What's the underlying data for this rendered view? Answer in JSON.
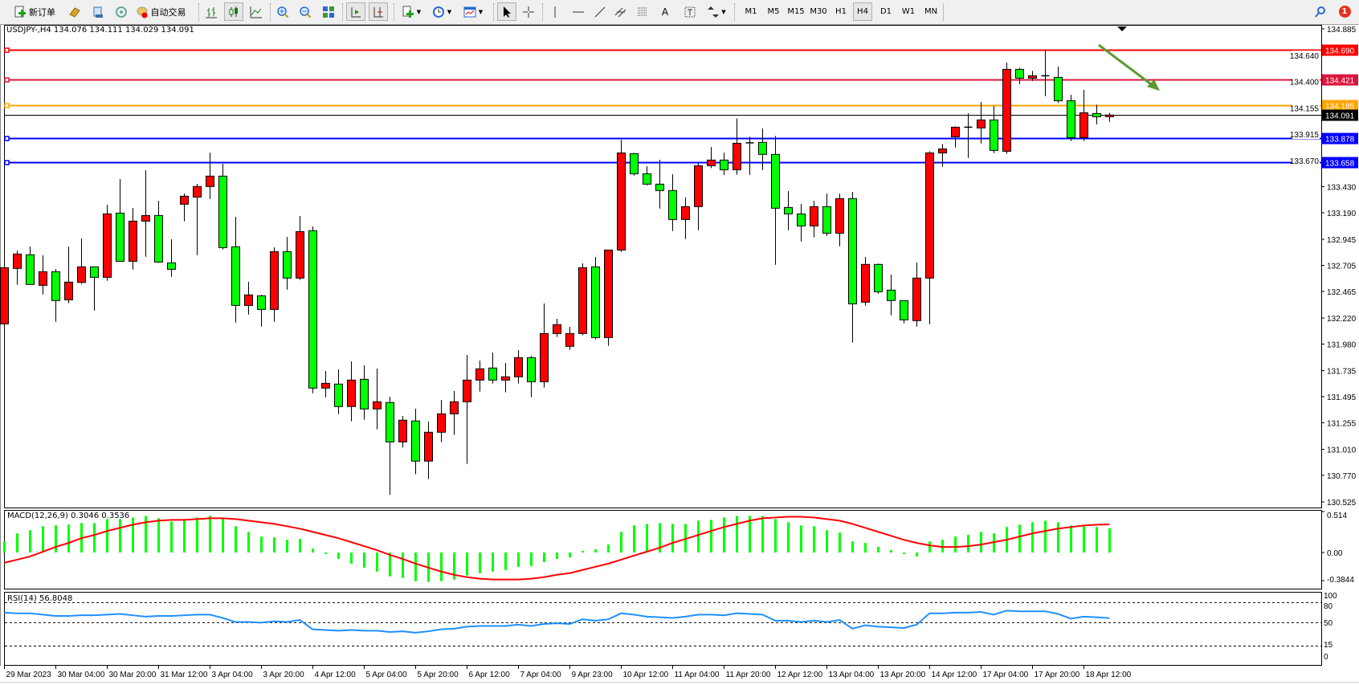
{
  "toolbar": {
    "new_order_label": "新订单",
    "auto_trade_label": "自动交易",
    "timeframes": [
      "M1",
      "M5",
      "M15",
      "M30",
      "H1",
      "H4",
      "D1",
      "W1",
      "MN"
    ],
    "active_timeframe": "H4",
    "notification_count": "1"
  },
  "chart": {
    "title": "USDJPY-,H4  134.076 134.111 134.029 134.091",
    "bull_color": "#ff0000",
    "bear_color": "#00ff00",
    "ohlc": [
      [
        132.166,
        132.701,
        132.141,
        132.684
      ],
      [
        132.677,
        132.842,
        132.526,
        132.81
      ],
      [
        132.803,
        132.879,
        132.529,
        132.529
      ],
      [
        132.521,
        132.798,
        132.437,
        132.647
      ],
      [
        132.647,
        132.672,
        132.186,
        132.381
      ],
      [
        132.388,
        132.879,
        132.356,
        132.551
      ],
      [
        132.548,
        132.953,
        132.534,
        132.692
      ],
      [
        132.692,
        132.692,
        132.289,
        132.595
      ],
      [
        132.595,
        133.264,
        132.563,
        133.18
      ],
      [
        133.187,
        133.501,
        132.743,
        132.743
      ],
      [
        132.743,
        133.234,
        132.667,
        133.113
      ],
      [
        133.113,
        133.582,
        132.785,
        133.165
      ],
      [
        133.165,
        133.301,
        132.729,
        132.736
      ],
      [
        132.729,
        132.946,
        132.6,
        132.669
      ],
      [
        133.269,
        133.368,
        133.111,
        133.343
      ],
      [
        133.335,
        133.456,
        132.8,
        133.432
      ],
      [
        133.432,
        133.745,
        133.318,
        133.528
      ],
      [
        133.528,
        133.641,
        132.852,
        132.869
      ],
      [
        132.877,
        133.153,
        132.178,
        132.336
      ],
      [
        132.336,
        132.553,
        132.252,
        132.433
      ],
      [
        132.425,
        132.435,
        132.141,
        132.299
      ],
      [
        132.299,
        132.872,
        132.186,
        132.832
      ],
      [
        132.832,
        132.968,
        132.482,
        132.588
      ],
      [
        132.588,
        133.16,
        132.571,
        133.017
      ],
      [
        133.025,
        133.064,
        131.527,
        131.574
      ],
      [
        131.574,
        131.732,
        131.49,
        131.618
      ],
      [
        131.611,
        131.747,
        131.335,
        131.404
      ],
      [
        131.404,
        131.821,
        131.268,
        131.648
      ],
      [
        131.655,
        131.784,
        131.283,
        131.382
      ],
      [
        131.382,
        131.754,
        131.194,
        131.448
      ],
      [
        131.441,
        131.495,
        130.59,
        131.078
      ],
      [
        131.078,
        131.317,
        131.026,
        131.278
      ],
      [
        131.271,
        131.384,
        130.78,
        130.901
      ],
      [
        130.901,
        131.266,
        130.735,
        131.167
      ],
      [
        131.167,
        131.465,
        131.076,
        131.337
      ],
      [
        131.337,
        131.547,
        131.142,
        131.448
      ],
      [
        131.448,
        131.88,
        130.876,
        131.648
      ],
      [
        131.648,
        131.828,
        131.542,
        131.752
      ],
      [
        131.759,
        131.902,
        131.616,
        131.648
      ],
      [
        131.648,
        131.806,
        131.535,
        131.678
      ],
      [
        131.678,
        131.924,
        131.616,
        131.855
      ],
      [
        131.855,
        131.87,
        131.49,
        131.633
      ],
      [
        131.633,
        132.354,
        131.579,
        132.077
      ],
      [
        132.077,
        132.213,
        132.045,
        132.159
      ],
      [
        131.959,
        132.139,
        131.927,
        132.077
      ],
      [
        132.077,
        132.724,
        132.062,
        132.684
      ],
      [
        132.692,
        132.783,
        132.023,
        132.04
      ],
      [
        132.04,
        132.847,
        131.964,
        132.847
      ],
      [
        132.847,
        133.863,
        132.83,
        133.742
      ],
      [
        133.735,
        133.742,
        133.533,
        133.55
      ],
      [
        133.55,
        133.619,
        133.444,
        133.454
      ],
      [
        133.454,
        133.678,
        133.229,
        133.395
      ],
      [
        133.395,
        133.545,
        133.022,
        133.128
      ],
      [
        133.128,
        133.331,
        132.948,
        133.247
      ],
      [
        133.247,
        133.646,
        133.03,
        133.624
      ],
      [
        133.624,
        133.797,
        133.602,
        133.676
      ],
      [
        133.676,
        133.745,
        133.54,
        133.587
      ],
      [
        133.587,
        134.06,
        133.54,
        133.831
      ],
      [
        133.831,
        133.891,
        133.54,
        133.835
      ],
      [
        133.839,
        133.967,
        133.584,
        133.728
      ],
      [
        133.728,
        133.898,
        132.711,
        133.232
      ],
      [
        133.239,
        133.39,
        133.029,
        133.18
      ],
      [
        133.18,
        133.271,
        132.926,
        133.069
      ],
      [
        133.069,
        133.301,
        132.963,
        133.247
      ],
      [
        133.247,
        133.367,
        132.978,
        133.002
      ],
      [
        133.002,
        133.367,
        132.881,
        133.321
      ],
      [
        133.321,
        133.382,
        131.993,
        132.351
      ],
      [
        132.366,
        132.783,
        132.334,
        132.714
      ],
      [
        132.714,
        132.722,
        132.445,
        132.462
      ],
      [
        132.477,
        132.62,
        132.245,
        132.381
      ],
      [
        132.381,
        132.381,
        132.171,
        132.203
      ],
      [
        132.196,
        132.731,
        132.141,
        132.588
      ],
      [
        132.588,
        133.757,
        132.163,
        133.742
      ],
      [
        133.742,
        133.824,
        133.614,
        133.779
      ],
      [
        133.89,
        133.987,
        133.792,
        133.979
      ],
      [
        133.979,
        134.107,
        133.696,
        133.977
      ],
      [
        133.972,
        134.211,
        133.829,
        134.046
      ],
      [
        134.046,
        134.174,
        133.74,
        133.765
      ],
      [
        133.757,
        134.574,
        133.733,
        134.512
      ],
      [
        134.512,
        134.527,
        134.376,
        134.431
      ],
      [
        134.431,
        134.497,
        134.406,
        134.453
      ],
      [
        134.453,
        134.692,
        134.265,
        134.443
      ],
      [
        134.438,
        134.537,
        134.201,
        134.223
      ],
      [
        134.223,
        134.278,
        133.851,
        133.883
      ],
      [
        133.883,
        134.322,
        133.851,
        134.112
      ],
      [
        134.105,
        134.186,
        134.006,
        134.075
      ],
      [
        134.076,
        134.111,
        134.029,
        134.091
      ]
    ],
    "hlines": [
      {
        "price": 134.69,
        "label": "134.690",
        "color": "#ff0000"
      },
      {
        "price": 134.421,
        "label": "134.421",
        "color": "#dc143c"
      },
      {
        "price": 134.185,
        "label": "134.185",
        "color": "#ffa500"
      },
      {
        "price": 133.878,
        "label": "133.878",
        "color": "#0000ff"
      },
      {
        "price": 133.658,
        "label": "133.658",
        "color": "#0000ff"
      }
    ],
    "bid": {
      "price": 134.091,
      "label": "134.091",
      "color": "#000000"
    },
    "price_range": [
      130.525,
      134.885
    ],
    "price_ticks": [
      "134.885",
      "134.640",
      "134.400",
      "134.155",
      "133.915",
      "133.670",
      "133.430",
      "133.190",
      "132.945",
      "132.705",
      "132.465",
      "132.220",
      "131.980",
      "131.735",
      "131.495",
      "131.255",
      "131.010",
      "130.770",
      "130.525"
    ],
    "time_labels": [
      "29 Mar 2023",
      "30 Mar 04:00",
      "30 Mar 20:00",
      "31 Mar 12:00",
      "3 Apr 04:00",
      "3 Apr 20:00",
      "4 Apr 12:00",
      "5 Apr 04:00",
      "5 Apr 20:00",
      "6 Apr 12:00",
      "7 Apr 04:00",
      "9 Apr 23:00",
      "10 Apr 12:00",
      "11 Apr 04:00",
      "11 Apr 20:00",
      "12 Apr 12:00",
      "13 Apr 04:00",
      "13 Apr 20:00",
      "14 Apr 12:00",
      "17 Apr 04:00",
      "17 Apr 20:00",
      "18 Apr 12:00"
    ],
    "arrow_color": "#5a9a32"
  },
  "macd": {
    "label": "MACD(12,26,9) 0.3046 0.3536",
    "ticks": [
      "0.514",
      "0.00",
      "-0.3844"
    ],
    "hist_color": "#00ff00",
    "signal_color": "#ff0000",
    "histogram": [
      0.14,
      0.24,
      0.28,
      0.33,
      0.34,
      0.35,
      0.37,
      0.37,
      0.42,
      0.42,
      0.44,
      0.46,
      0.43,
      0.39,
      0.41,
      0.44,
      0.46,
      0.43,
      0.33,
      0.26,
      0.2,
      0.19,
      0.16,
      0.17,
      0.05,
      -0.02,
      -0.08,
      -0.14,
      -0.19,
      -0.24,
      -0.3,
      -0.32,
      -0.36,
      -0.37,
      -0.36,
      -0.34,
      -0.29,
      -0.26,
      -0.24,
      -0.22,
      -0.18,
      -0.17,
      -0.12,
      -0.08,
      -0.06,
      0.02,
      0.04,
      0.1,
      0.26,
      0.34,
      0.36,
      0.37,
      0.36,
      0.36,
      0.4,
      0.41,
      0.44,
      0.46,
      0.46,
      0.46,
      0.42,
      0.38,
      0.34,
      0.33,
      0.28,
      0.25,
      0.14,
      0.12,
      0.07,
      0.03,
      -0.02,
      -0.05,
      0.14,
      0.16,
      0.2,
      0.22,
      0.26,
      0.24,
      0.32,
      0.35,
      0.38,
      0.4,
      0.38,
      0.34,
      0.34,
      0.32,
      0.3046
    ],
    "signal": [
      -0.13,
      -0.09,
      -0.05,
      0.01,
      0.07,
      0.12,
      0.18,
      0.22,
      0.27,
      0.31,
      0.35,
      0.38,
      0.4,
      0.41,
      0.41,
      0.42,
      0.43,
      0.43,
      0.42,
      0.4,
      0.38,
      0.36,
      0.33,
      0.3,
      0.26,
      0.22,
      0.18,
      0.13,
      0.08,
      0.03,
      -0.03,
      -0.08,
      -0.14,
      -0.19,
      -0.24,
      -0.28,
      -0.31,
      -0.33,
      -0.34,
      -0.34,
      -0.34,
      -0.33,
      -0.31,
      -0.28,
      -0.26,
      -0.22,
      -0.18,
      -0.14,
      -0.09,
      -0.04,
      0.01,
      0.06,
      0.12,
      0.17,
      0.22,
      0.27,
      0.32,
      0.36,
      0.4,
      0.43,
      0.44,
      0.45,
      0.45,
      0.44,
      0.42,
      0.4,
      0.36,
      0.31,
      0.26,
      0.21,
      0.16,
      0.12,
      0.09,
      0.07,
      0.07,
      0.08,
      0.1,
      0.13,
      0.16,
      0.2,
      0.24,
      0.27,
      0.3,
      0.32,
      0.34,
      0.35,
      0.3536
    ]
  },
  "rsi": {
    "label": "RSI(14) 56.8048",
    "ticks": [
      "100",
      "80",
      "50",
      "15",
      "0"
    ],
    "levels": [
      80,
      50,
      15
    ],
    "color": "#1e90ff",
    "values": [
      65,
      64,
      64,
      62,
      60,
      60,
      61,
      61,
      62,
      63,
      61,
      59,
      60,
      60,
      61,
      62,
      62,
      57,
      51,
      51,
      50,
      52,
      51,
      54,
      40,
      39,
      38,
      39,
      38,
      38,
      36,
      37,
      35,
      37,
      40,
      41,
      44,
      45,
      45,
      45,
      47,
      45,
      48,
      49,
      48,
      55,
      53,
      55,
      64,
      62,
      59,
      58,
      57,
      59,
      62,
      62,
      61,
      64,
      63,
      62,
      53,
      53,
      51,
      53,
      51,
      54,
      41,
      46,
      44,
      43,
      42,
      47,
      64,
      64,
      65,
      65,
      66,
      62,
      68,
      67,
      67,
      67,
      63,
      56,
      59,
      58,
      56.8
    ]
  }
}
